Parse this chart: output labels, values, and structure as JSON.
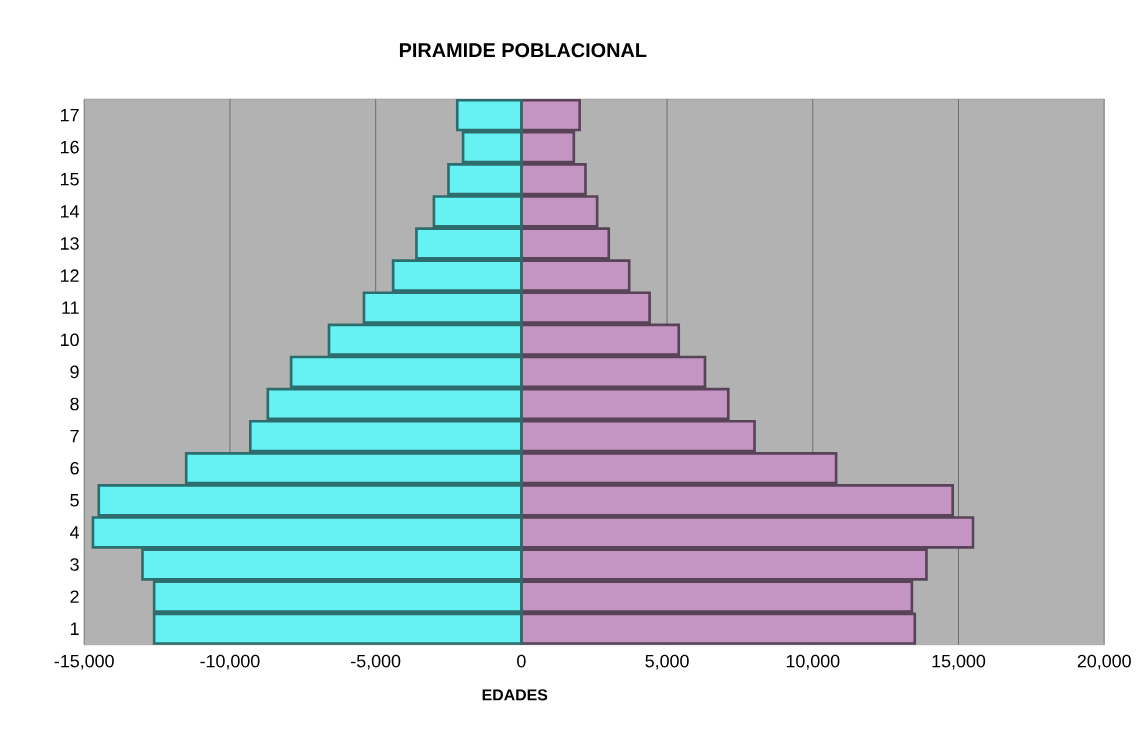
{
  "chart_data": {
    "type": "bar",
    "orientation": "horizontal",
    "title": "PIRAMIDE POBLACIONAL",
    "xlabel": "EDADES",
    "categories": [
      "17",
      "16",
      "15",
      "14",
      "13",
      "12",
      "11",
      "10",
      "9",
      "8",
      "7",
      "6",
      "5",
      "4",
      "3",
      "2",
      "1"
    ],
    "series": [
      {
        "color": "#66f2f2",
        "values": [
          -2200,
          -2000,
          -2500,
          -3000,
          -3600,
          -4400,
          -5400,
          -6600,
          -7900,
          -8700,
          -9300,
          -11500,
          -14500,
          -14700,
          -13000,
          -12600,
          -12600
        ]
      },
      {
        "color": "#c495c3",
        "values": [
          2000,
          1800,
          2200,
          2600,
          3000,
          3700,
          4400,
          5400,
          6300,
          7100,
          8000,
          10800,
          14800,
          15500,
          13900,
          13400,
          13500
        ]
      }
    ],
    "xlim": [
      -15000,
      20000
    ],
    "xticks": [
      {
        "value": -15000,
        "label": "-15,000"
      },
      {
        "value": -10000,
        "label": "-10,000"
      },
      {
        "value": -5000,
        "label": "-5,000"
      },
      0,
      {
        "value": 5000,
        "label": "5,000"
      },
      {
        "value": 10000,
        "label": "10,000"
      },
      {
        "value": 15000,
        "label": "15,000"
      },
      {
        "value": 20000,
        "label": "20,000"
      }
    ],
    "grid": "x",
    "stacked": true
  }
}
